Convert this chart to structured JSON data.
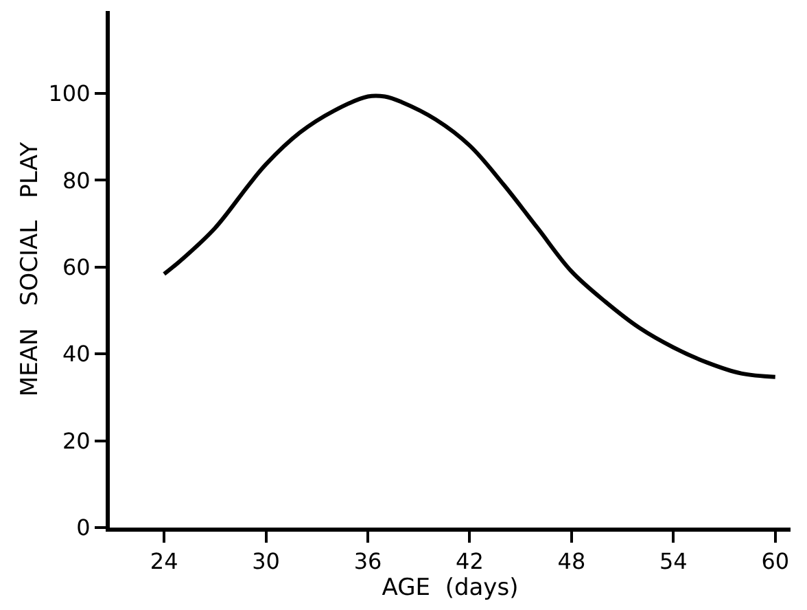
{
  "chart_data": {
    "type": "line",
    "xlabel": "AGE  (days)",
    "ylabel": "MEAN   SOCIAL   PLAY",
    "x": [
      24,
      25,
      27,
      29,
      30,
      32,
      34,
      36,
      37,
      38,
      40,
      42,
      44,
      46,
      48,
      50,
      52,
      54,
      56,
      58,
      60
    ],
    "series": [
      {
        "color": "#000000",
        "values": [
          58.4,
          61.6,
          69,
          79,
          83.7,
          91,
          96,
          99.3,
          99.3,
          98,
          94,
          88,
          79,
          69,
          59,
          52,
          46,
          41.5,
          38,
          35.5,
          34.7
        ]
      }
    ],
    "xlim": [
      20.8,
      60.9
    ],
    "xticks": [
      24,
      30,
      36,
      42,
      48,
      54,
      60
    ],
    "ylim": [
      0,
      119
    ],
    "yticks": [
      0,
      20,
      40,
      60,
      80,
      100
    ],
    "marker": "none",
    "line_style": "solid"
  }
}
